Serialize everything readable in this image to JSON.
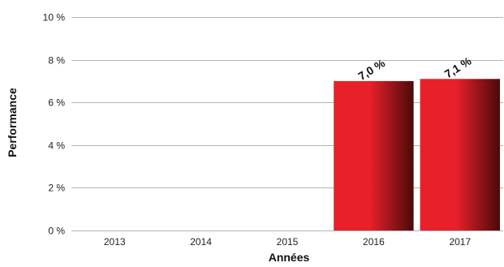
{
  "chart_data": {
    "type": "bar",
    "categories": [
      "2013",
      "2014",
      "2015",
      "2016",
      "2017"
    ],
    "values": [
      null,
      null,
      null,
      7.0,
      7.1
    ],
    "data_labels": [
      "",
      "",
      "",
      "7,0 %",
      "7,1 %"
    ],
    "xlabel": "Années",
    "ylabel": "Performance",
    "ylim": [
      0,
      10
    ],
    "y_ticks": [
      0,
      2,
      4,
      6,
      8,
      10
    ],
    "y_tick_labels": [
      "0 %",
      "2 %",
      "4 %",
      "6 %",
      "8 %",
      "10 %"
    ],
    "grid": true,
    "legend": "none",
    "colors": {
      "bar_light": "#e8202a",
      "bar_dark": "#4a0a0a",
      "grid": "#b3b3b3"
    }
  }
}
